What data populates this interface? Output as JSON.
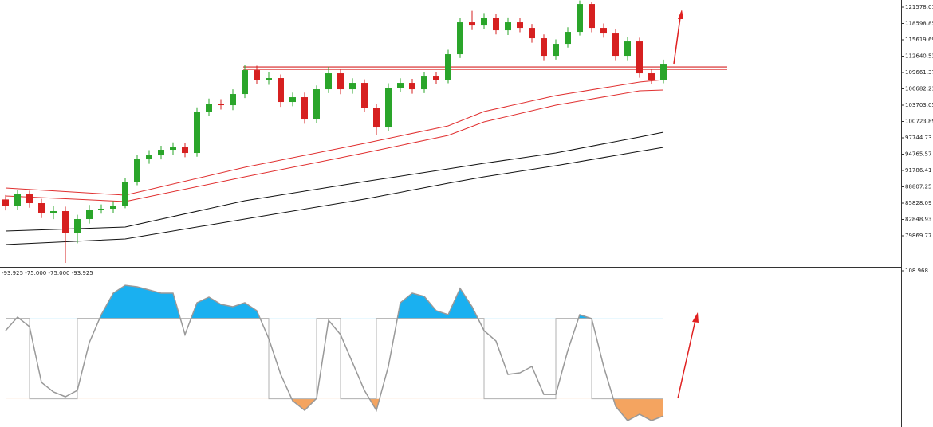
{
  "chart_data": [
    {
      "type": "candlestick",
      "up_color": "#2aa52a",
      "down_color": "#d62020",
      "ylim": [
        74347,
        122886
      ],
      "yticks": [
        121578.01,
        118598.85,
        115619.69,
        112640.53,
        109661.37,
        106682.21,
        103703.05,
        100723.89,
        97744.73,
        94765.57,
        91786.41,
        88807.25,
        85828.09,
        82848.93,
        79869.77
      ],
      "open": [
        86500,
        85391,
        87425,
        85826,
        83938,
        84373,
        80450,
        82920,
        84664,
        84809,
        85391,
        89750,
        93818,
        94544,
        95562,
        95997,
        94980,
        102536,
        103989,
        103698,
        105733,
        110092,
        108348,
        108639,
        104280,
        105151,
        101083,
        106604,
        109510,
        106604,
        107767,
        103262,
        99630,
        106895,
        107767,
        106604,
        108929,
        108348,
        112998,
        118810,
        118228,
        119681,
        117357,
        118810,
        117792,
        115904,
        112707,
        114886,
        117066,
        122151,
        117792,
        116775,
        112707,
        115322,
        109510,
        108348
      ],
      "high": [
        87300,
        88300,
        88100,
        86600,
        85400,
        85200,
        83700,
        85500,
        85600,
        86200,
        90400,
        94600,
        95500,
        96300,
        96900,
        96800,
        103300,
        104900,
        104800,
        106600,
        111000,
        110900,
        109800,
        109300,
        106000,
        106000,
        107300,
        110700,
        110200,
        108600,
        108400,
        104000,
        107700,
        108600,
        108500,
        109800,
        109700,
        113800,
        119600,
        120900,
        120500,
        120400,
        119700,
        119600,
        118500,
        116600,
        115700,
        117900,
        122800,
        122600,
        118600,
        117500,
        116100,
        116000,
        110300,
        112000
      ],
      "low": [
        84500,
        84600,
        85000,
        83100,
        82900,
        74930,
        78500,
        82100,
        83900,
        84000,
        84900,
        89100,
        93000,
        93800,
        94700,
        94200,
        94300,
        101700,
        102900,
        102800,
        105000,
        107500,
        107400,
        103400,
        103500,
        100300,
        100400,
        105900,
        105700,
        105800,
        102400,
        98300,
        99000,
        106100,
        105800,
        105900,
        107600,
        107700,
        112300,
        117400,
        117500,
        116600,
        116500,
        117000,
        115100,
        111900,
        112000,
        114200,
        116400,
        117000,
        116000,
        111900,
        111900,
        108700,
        107600,
        107700
      ],
      "close": [
        85391,
        87425,
        85826,
        83938,
        84373,
        80450,
        82920,
        84664,
        84809,
        85391,
        89750,
        93818,
        94544,
        95562,
        95997,
        94980,
        102536,
        103989,
        103698,
        105733,
        110092,
        108348,
        108639,
        104280,
        105151,
        101083,
        106604,
        109510,
        106604,
        107767,
        103262,
        99630,
        106895,
        107767,
        106604,
        108929,
        108348,
        112998,
        118810,
        118228,
        119681,
        117357,
        118810,
        117792,
        115904,
        112707,
        114886,
        117066,
        122151,
        117792,
        116775,
        112707,
        115322,
        109510,
        108348,
        111254
      ],
      "lines": [
        {
          "color": "#e03030",
          "x": [
            0,
            10,
            20,
            30,
            37,
            40,
            46,
            53,
            55
          ],
          "values": [
            88587,
            87279,
            92365,
            96724,
            99921,
            102536,
            105442,
            107912,
            108348
          ]
        },
        {
          "color": "#e03030",
          "x": [
            0,
            10,
            20,
            30,
            37,
            40,
            46,
            53,
            55
          ],
          "values": [
            87134,
            86117,
            90621,
            94980,
            98177,
            100647,
            103698,
            106314,
            106459
          ]
        },
        {
          "color": "#111111",
          "x": [
            0,
            10,
            20,
            30,
            37,
            40,
            46,
            53,
            55
          ],
          "values": [
            80741,
            81467,
            86262,
            89750,
            92074,
            93091,
            94980,
            97886,
            98758
          ]
        },
        {
          "color": "#111111",
          "x": [
            0,
            10,
            20,
            30,
            37,
            40,
            46,
            53,
            55
          ],
          "values": [
            78271,
            79288,
            82920,
            86553,
            89459,
            90621,
            92656,
            95271,
            95997
          ]
        }
      ],
      "hlines": {
        "color": "#d62020",
        "values": [
          110673,
          110237
        ]
      }
    },
    {
      "type": "line",
      "title": "-93.925 -75.000 -75.000 -93.925",
      "ylim": [
        -85,
        108.968
      ],
      "yticks": [
        108.968
      ],
      "color": "#999999",
      "values": [
        34.7,
        51.6,
        39.7,
        -29.6,
        -41.5,
        -47.4,
        -39.5,
        19.9,
        54.5,
        81.3,
        91.1,
        89.2,
        85.2,
        81.3,
        81.3,
        29.8,
        69.4,
        76.3,
        67.4,
        64.4,
        69.4,
        59.5,
        24.8,
        -19.7,
        -52.4,
        -64.3,
        -49.4,
        47.6,
        29.8,
        -4.9,
        -39.5,
        -64.3,
        -9.8,
        69.4,
        81.3,
        77.3,
        59.5,
        54.5,
        87.2,
        64.4,
        34.7,
        21.8,
        -19.7,
        -17.7,
        -9.8,
        -44.5,
        -44.5,
        10,
        54.5,
        49.6,
        -9.8,
        -59.3,
        -77.1,
        -69.2,
        -77.1,
        -71.2
      ],
      "signal": {
        "color": "#b0b0b0",
        "values": [
          50,
          50,
          50,
          -50,
          -50,
          -50,
          -50,
          50,
          50,
          50,
          50,
          50,
          50,
          50,
          50,
          50,
          50,
          50,
          50,
          50,
          50,
          50,
          50,
          -50,
          -50,
          -50,
          -50,
          50,
          50,
          -50,
          -50,
          -50,
          50,
          50,
          50,
          50,
          50,
          50,
          50,
          50,
          50,
          -50,
          -50,
          -50,
          -50,
          -50,
          -50,
          50,
          50,
          50,
          -50,
          -50,
          -50,
          -50,
          -50,
          -50
        ]
      },
      "levels": [
        50,
        -50
      ],
      "fill_colors": [
        "#1ab0f0",
        "#f4a460"
      ]
    }
  ]
}
